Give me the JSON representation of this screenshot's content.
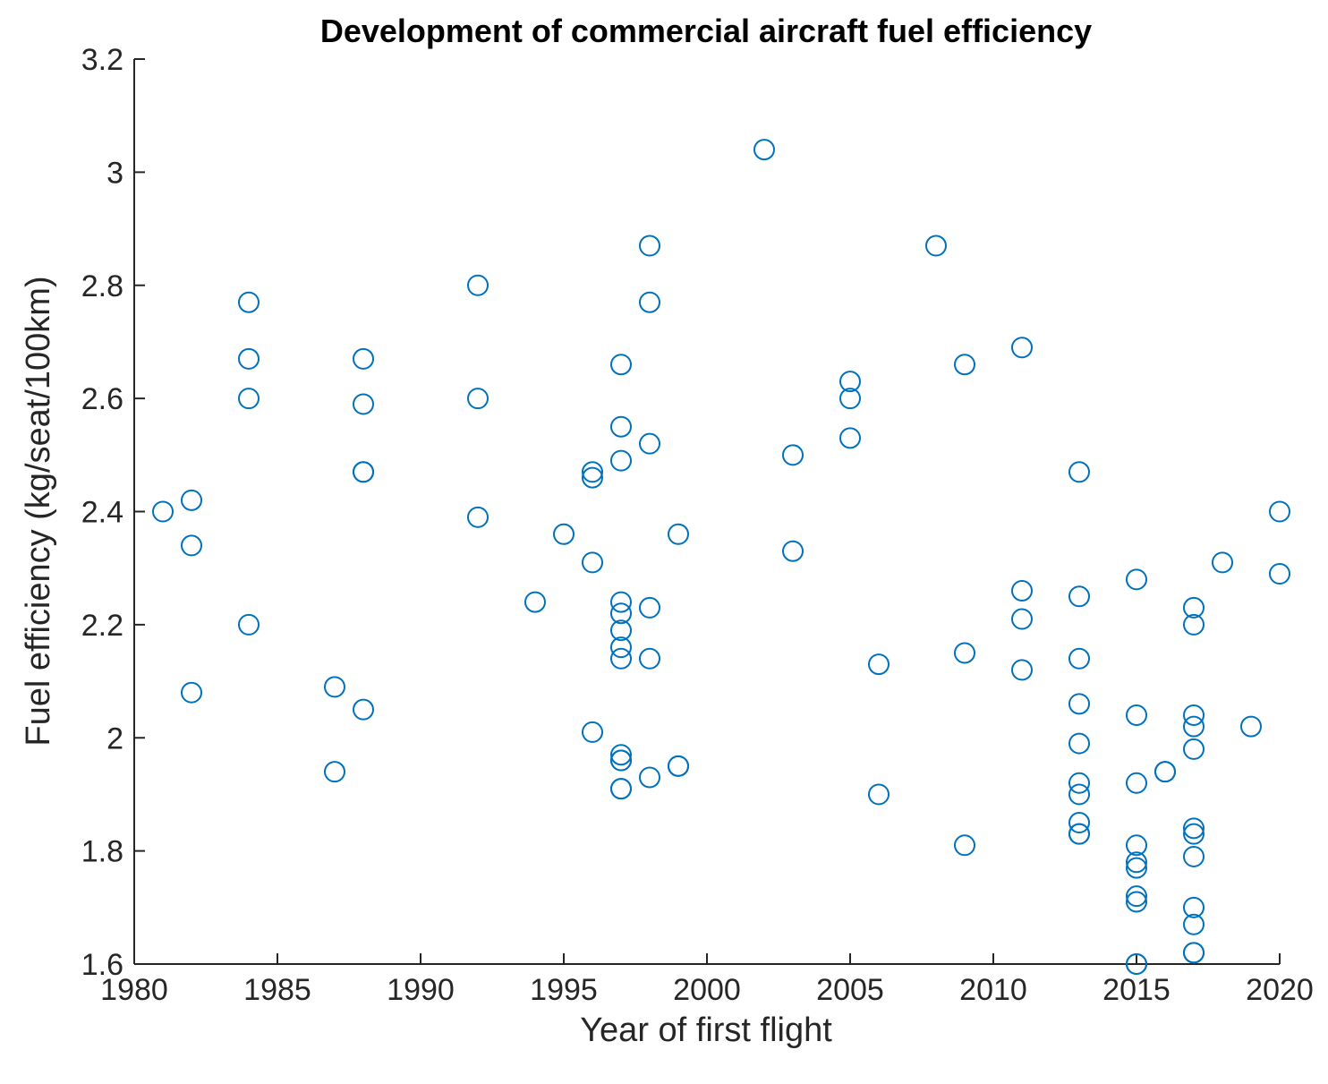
{
  "chart_data": {
    "type": "scatter",
    "title": "Development of commercial aircraft fuel efficiency",
    "xlabel": "Year of first flight",
    "ylabel": "Fuel efficiency (kg/seat/100km)",
    "xlim": [
      1980,
      2020
    ],
    "ylim": [
      1.6,
      3.2
    ],
    "xticks": [
      1980,
      1985,
      1990,
      1995,
      2000,
      2005,
      2010,
      2015,
      2020
    ],
    "xtick_labels": [
      "1980",
      "1985",
      "1990",
      "1995",
      "2000",
      "2005",
      "2010",
      "2015",
      "2020"
    ],
    "yticks": [
      1.6,
      1.8,
      2.0,
      2.2,
      2.4,
      2.6,
      2.8,
      3.0,
      3.2
    ],
    "ytick_labels": [
      "1.6",
      "1.8",
      "2",
      "2.2",
      "2.4",
      "2.6",
      "2.8",
      "3",
      "3.2"
    ],
    "marker": "open-circle",
    "color": "#0072BD",
    "grid": false,
    "x": [
      1981,
      1982,
      1982,
      1982,
      1984,
      1984,
      1984,
      1984,
      1987,
      1987,
      1988,
      1988,
      1988,
      1988,
      1988,
      1992,
      1992,
      1992,
      1994,
      1995,
      1996,
      1996,
      1996,
      1996,
      1997,
      1997,
      1997,
      1997,
      1997,
      1997,
      1997,
      1997,
      1997,
      1997,
      1997,
      1997,
      1997,
      1998,
      1998,
      1998,
      1998,
      1998,
      1998,
      1999,
      1999,
      1999,
      2002,
      2003,
      2003,
      2005,
      2005,
      2005,
      2006,
      2006,
      2008,
      2009,
      2009,
      2009,
      2011,
      2011,
      2011,
      2011,
      2013,
      2013,
      2013,
      2013,
      2013,
      2013,
      2013,
      2013,
      2013,
      2013,
      2015,
      2015,
      2015,
      2015,
      2015,
      2015,
      2015,
      2015,
      2015,
      2015,
      2016,
      2016,
      2017,
      2017,
      2017,
      2017,
      2017,
      2017,
      2017,
      2017,
      2017,
      2017,
      2017,
      2017,
      2018,
      2019,
      2020,
      2020
    ],
    "y": [
      2.4,
      2.42,
      2.34,
      2.08,
      2.77,
      2.67,
      2.6,
      2.2,
      2.09,
      1.94,
      2.67,
      2.59,
      2.47,
      2.47,
      2.05,
      2.8,
      2.6,
      2.39,
      2.24,
      2.36,
      2.47,
      2.46,
      2.31,
      2.01,
      2.66,
      2.55,
      2.49,
      2.24,
      2.22,
      2.19,
      2.16,
      2.14,
      1.97,
      1.96,
      1.96,
      1.91,
      1.91,
      2.87,
      2.77,
      2.52,
      2.23,
      2.14,
      1.93,
      2.36,
      1.95,
      1.95,
      3.04,
      2.5,
      2.33,
      2.63,
      2.6,
      2.53,
      2.13,
      1.9,
      2.87,
      2.66,
      2.15,
      1.81,
      2.69,
      2.26,
      2.21,
      2.12,
      2.47,
      2.25,
      2.14,
      2.06,
      1.99,
      1.92,
      1.9,
      1.85,
      1.83,
      1.83,
      2.28,
      2.04,
      1.92,
      1.81,
      1.78,
      1.77,
      1.72,
      1.71,
      1.6,
      1.6,
      1.94,
      1.94,
      2.23,
      2.2,
      2.04,
      2.02,
      1.98,
      1.84,
      1.83,
      1.79,
      1.7,
      1.67,
      1.62,
      1.62,
      2.31,
      2.02,
      2.4,
      2.29
    ]
  }
}
